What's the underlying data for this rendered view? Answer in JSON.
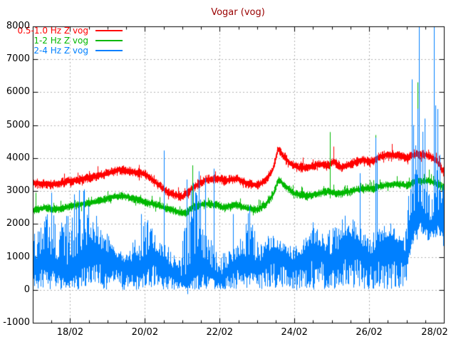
{
  "title_color": "#990000",
  "axis_color": "#000000",
  "grid_color": "#b2b2b2",
  "background": "#ffffff",
  "chart_data": {
    "type": "line",
    "title": "Vogar (vog)",
    "legend_position": "top-left",
    "grid": true,
    "y_axis": {
      "min": -1000,
      "max": 8000,
      "tick_step": 1000,
      "tick_labels": [
        "-1000",
        "0",
        "1000",
        "2000",
        "3000",
        "4000",
        "5000",
        "6000",
        "7000",
        "8000"
      ]
    },
    "x_axis": {
      "range_days": [
        0,
        11
      ],
      "minor_tick_step_days": 0.5,
      "tick_days": [
        1,
        3,
        5,
        7,
        9,
        11
      ],
      "tick_labels": [
        "18/02",
        "20/02",
        "22/02",
        "24/02",
        "26/02",
        "28/02"
      ]
    },
    "series": [
      {
        "name": "0.5-1.0 Hz Z vog",
        "color": "#ff0000",
        "style": "band",
        "band_halfwidth": 150,
        "mean_points": [
          [
            0,
            3250
          ],
          [
            0.5,
            3190
          ],
          [
            1,
            3300
          ],
          [
            1.5,
            3390
          ],
          [
            2,
            3530
          ],
          [
            2.3,
            3650
          ],
          [
            2.6,
            3600
          ],
          [
            3,
            3520
          ],
          [
            3.3,
            3240
          ],
          [
            3.6,
            2950
          ],
          [
            4,
            2820
          ],
          [
            4.3,
            3120
          ],
          [
            4.6,
            3330
          ],
          [
            4.9,
            3380
          ],
          [
            5.15,
            3320
          ],
          [
            5.45,
            3380
          ],
          [
            5.7,
            3230
          ],
          [
            6,
            3180
          ],
          [
            6.2,
            3290
          ],
          [
            6.42,
            3660
          ],
          [
            6.55,
            4280
          ],
          [
            6.7,
            4060
          ],
          [
            6.9,
            3820
          ],
          [
            7.1,
            3700
          ],
          [
            7.4,
            3720
          ],
          [
            7.65,
            3830
          ],
          [
            7.85,
            3760
          ],
          [
            8.05,
            3890
          ],
          [
            8.25,
            3720
          ],
          [
            8.5,
            3820
          ],
          [
            8.8,
            3950
          ],
          [
            9.05,
            3890
          ],
          [
            9.25,
            4020
          ],
          [
            9.5,
            4120
          ],
          [
            9.8,
            4070
          ],
          [
            10,
            4000
          ],
          [
            10.2,
            4120
          ],
          [
            10.5,
            4100
          ],
          [
            10.7,
            4000
          ],
          [
            10.85,
            3840
          ],
          [
            11,
            3540
          ]
        ],
        "spikes": [
          [
            8.05,
            4350
          ],
          [
            9.6,
            4430
          ]
        ]
      },
      {
        "name": "1-2 Hz Z vog",
        "color": "#00b800",
        "style": "band",
        "band_halfwidth": 130,
        "mean_points": [
          [
            0,
            2400
          ],
          [
            0.3,
            2500
          ],
          [
            0.6,
            2440
          ],
          [
            1,
            2540
          ],
          [
            1.4,
            2620
          ],
          [
            1.8,
            2700
          ],
          [
            2.15,
            2830
          ],
          [
            2.45,
            2850
          ],
          [
            2.7,
            2760
          ],
          [
            3,
            2660
          ],
          [
            3.3,
            2580
          ],
          [
            3.6,
            2460
          ],
          [
            3.85,
            2380
          ],
          [
            4.05,
            2310
          ],
          [
            4.3,
            2520
          ],
          [
            4.6,
            2620
          ],
          [
            4.9,
            2580
          ],
          [
            5.1,
            2500
          ],
          [
            5.4,
            2590
          ],
          [
            5.7,
            2480
          ],
          [
            6,
            2440
          ],
          [
            6.2,
            2560
          ],
          [
            6.42,
            2880
          ],
          [
            6.57,
            3360
          ],
          [
            6.75,
            3140
          ],
          [
            7,
            2920
          ],
          [
            7.3,
            2850
          ],
          [
            7.6,
            2910
          ],
          [
            7.9,
            2990
          ],
          [
            8.2,
            2910
          ],
          [
            8.5,
            2990
          ],
          [
            8.8,
            3070
          ],
          [
            9.1,
            3090
          ],
          [
            9.4,
            3170
          ],
          [
            9.7,
            3210
          ],
          [
            10,
            3170
          ],
          [
            10.3,
            3290
          ],
          [
            10.6,
            3310
          ],
          [
            10.8,
            3210
          ],
          [
            11,
            3110
          ]
        ],
        "spikes": [
          [
            0.08,
            2950
          ],
          [
            4.27,
            3780
          ],
          [
            7.95,
            4790
          ],
          [
            9.17,
            4700
          ],
          [
            10.3,
            6300
          ],
          [
            10.33,
            7950
          ],
          [
            10.6,
            3650
          ]
        ]
      },
      {
        "name": "2-4 Hz Z vog",
        "color": "#0080ff",
        "style": "spiky",
        "noise_down": 300,
        "mean_points": [
          [
            0,
            750,
            900
          ],
          [
            0.3,
            1000,
            1300
          ],
          [
            0.55,
            800,
            1800
          ],
          [
            0.8,
            560,
            1500
          ],
          [
            1.05,
            520,
            2300
          ],
          [
            1.3,
            900,
            2200
          ],
          [
            1.6,
            1250,
            1500
          ],
          [
            1.9,
            1100,
            700
          ],
          [
            2.2,
            950,
            500
          ],
          [
            2.5,
            750,
            450
          ],
          [
            2.8,
            650,
            1000
          ],
          [
            3.05,
            900,
            1400
          ],
          [
            3.25,
            1100,
            600
          ],
          [
            3.5,
            850,
            700
          ],
          [
            3.75,
            600,
            500
          ],
          [
            3.95,
            350,
            600
          ],
          [
            4.1,
            130,
            2600
          ],
          [
            4.25,
            500,
            2800
          ],
          [
            4.45,
            800,
            2400
          ],
          [
            4.65,
            600,
            1200
          ],
          [
            4.85,
            460,
            900
          ],
          [
            5.05,
            380,
            700
          ],
          [
            5.25,
            650,
            600
          ],
          [
            5.5,
            950,
            500
          ],
          [
            5.75,
            820,
            1600
          ],
          [
            6,
            700,
            1000
          ],
          [
            6.2,
            900,
            700
          ],
          [
            6.45,
            1200,
            500
          ],
          [
            6.7,
            1050,
            450
          ],
          [
            6.95,
            820,
            500
          ],
          [
            7.2,
            1000,
            450
          ],
          [
            7.45,
            1300,
            700
          ],
          [
            7.7,
            1250,
            500
          ],
          [
            7.9,
            1000,
            800
          ],
          [
            8.1,
            900,
            1100
          ],
          [
            8.3,
            1500,
            700
          ],
          [
            8.55,
            1550,
            600
          ],
          [
            8.8,
            1250,
            600
          ],
          [
            9.05,
            1000,
            700
          ],
          [
            9.3,
            1300,
            600
          ],
          [
            9.55,
            1600,
            500
          ],
          [
            9.75,
            1400,
            450
          ],
          [
            9.95,
            1100,
            450
          ],
          [
            10.12,
            1600,
            2400,
            500
          ],
          [
            10.22,
            2200,
            2200,
            700
          ],
          [
            10.35,
            2400,
            2300,
            900
          ],
          [
            10.5,
            2100,
            1800,
            700
          ],
          [
            10.65,
            1900,
            900,
            400
          ],
          [
            10.8,
            2100,
            1500,
            500
          ],
          [
            10.93,
            2300,
            1800,
            700
          ],
          [
            11,
            1700,
            1000,
            500
          ]
        ],
        "spikes": [
          [
            0.45,
            20
          ],
          [
            0.5,
            2950
          ],
          [
            1.1,
            2900
          ],
          [
            1.38,
            3050
          ],
          [
            2.9,
            2300
          ],
          [
            3.5,
            4230
          ],
          [
            4.12,
            3350
          ],
          [
            4.14,
            -130
          ],
          [
            4.28,
            3240
          ],
          [
            4.45,
            3600
          ],
          [
            4.62,
            3400
          ],
          [
            4.85,
            3680
          ],
          [
            5.35,
            2300
          ],
          [
            5.8,
            2550
          ],
          [
            7.5,
            2050
          ],
          [
            8.35,
            2250
          ],
          [
            8.75,
            3540
          ],
          [
            9.17,
            4620
          ],
          [
            9.2,
            4100
          ],
          [
            10.15,
            6390
          ],
          [
            10.18,
            5000
          ],
          [
            10.3,
            5500
          ],
          [
            10.33,
            8100
          ],
          [
            10.42,
            4800
          ],
          [
            10.48,
            5200
          ],
          [
            10.73,
            8100
          ],
          [
            10.78,
            5600
          ],
          [
            10.83,
            5490
          ],
          [
            10.88,
            4100
          ]
        ]
      }
    ]
  }
}
